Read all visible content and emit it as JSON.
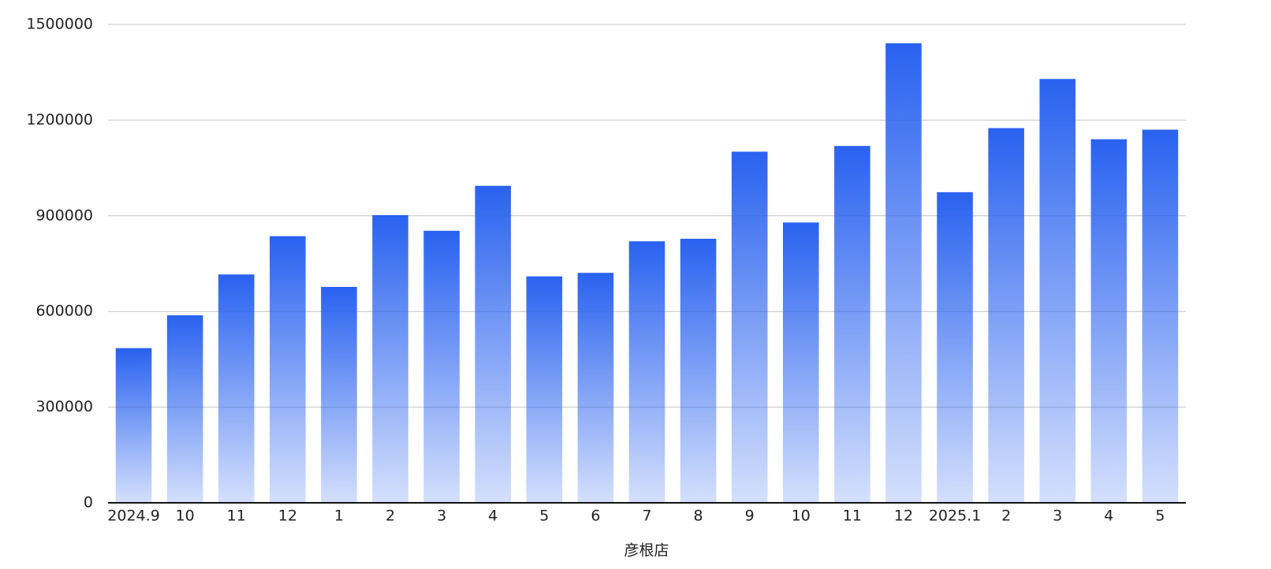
{
  "chart_data": {
    "type": "bar",
    "x_label": "彦根店",
    "categories": [
      "2024.9",
      "10",
      "11",
      "12",
      "1",
      "2",
      "3",
      "4",
      "5",
      "6",
      "7",
      "8",
      "9",
      "10",
      "11",
      "12",
      "2025.1",
      "2",
      "3",
      "4",
      "5"
    ],
    "values": [
      485000,
      588000,
      716000,
      836000,
      677000,
      902000,
      853000,
      994000,
      710000,
      721000,
      820000,
      828000,
      1101000,
      879000,
      1119000,
      1441000,
      974000,
      1175000,
      1329000,
      1140000,
      1170000
    ],
    "color": "#2962f0",
    "ylim": [
      0,
      1500000
    ],
    "yticks": [
      0,
      300000,
      600000,
      900000,
      1200000,
      1500000
    ],
    "grid": true
  }
}
